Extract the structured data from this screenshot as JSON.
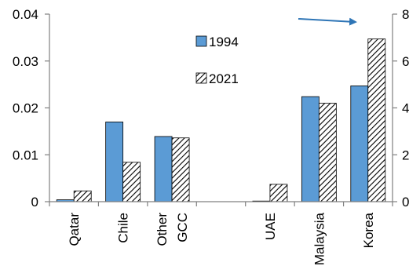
{
  "chart_data": {
    "type": "bar",
    "categories": [
      "Qatar",
      "Chile",
      "Other GCC",
      "",
      "UAE",
      "Malaysia",
      "Korea"
    ],
    "category_label_lines": [
      [
        "Qatar"
      ],
      [
        "Chile"
      ],
      [
        "Other",
        "GCC"
      ],
      [],
      [
        "UAE"
      ],
      [
        "Malaysia"
      ],
      [
        "Korea"
      ]
    ],
    "series": [
      {
        "name": "1994",
        "axis": "left",
        "color": "#5b9bd5",
        "pattern": "solid",
        "values": [
          0.0004,
          0.017,
          0.0139,
          null,
          0.0001,
          0.0224,
          0.0247
        ]
      },
      {
        "name": "2021",
        "axis": "left",
        "color": "#000000",
        "pattern": "diagonal-hatch",
        "values": [
          0.0023,
          0.0084,
          0.0136,
          null,
          0.0037,
          0.021,
          0.0347
        ]
      }
    ],
    "y_left": {
      "ylim": [
        0,
        0.04
      ],
      "ticks": [
        "0",
        "0.01",
        "0.02",
        "0.03",
        "0.04"
      ],
      "tick_values": [
        0,
        0.01,
        0.02,
        0.03,
        0.04
      ]
    },
    "y_right": {
      "ylim": [
        0,
        8
      ],
      "ticks": [
        "0",
        "2",
        "4",
        "6",
        "8"
      ],
      "tick_values": [
        0,
        2,
        4,
        6,
        8
      ]
    },
    "annotation": {
      "type": "arrow",
      "direction": "right",
      "meaning": "points to right axis",
      "color": "#2e75b6"
    },
    "legend": {
      "placement": "top-center",
      "entries": [
        "1994",
        "2021"
      ]
    },
    "title": "",
    "xlabel": "",
    "ylabel": "",
    "grid": false
  }
}
